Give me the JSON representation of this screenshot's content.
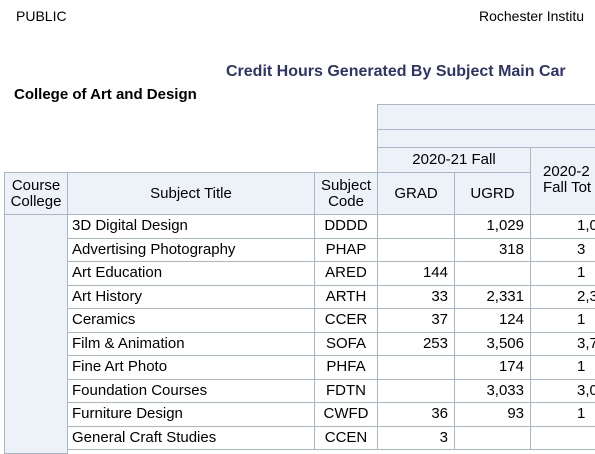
{
  "header": {
    "left": "PUBLIC",
    "right": "Rochester Institu"
  },
  "report_title": "Credit Hours Generated By Subject Main Car",
  "college_name": "College of Art and Design",
  "table": {
    "term_header": "2020-21 Fall",
    "total_header_line1": "2020-2",
    "total_header_line2": "Fall Tot",
    "col_course_college_1": "Course",
    "col_course_college_2": "College",
    "col_subject_title": "Subject Title",
    "col_subject_code_1": "Subject",
    "col_subject_code_2": "Code",
    "col_grad": "GRAD",
    "col_ugrd": "UGRD",
    "rows": [
      {
        "title": "3D Digital Design",
        "code": "DDDD",
        "grad": "",
        "ugrd": "1,029",
        "total": "1,0"
      },
      {
        "title": "Advertising Photography",
        "code": "PHAP",
        "grad": "",
        "ugrd": "318",
        "total": "3"
      },
      {
        "title": "Art Education",
        "code": "ARED",
        "grad": "144",
        "ugrd": "",
        "total": "1"
      },
      {
        "title": "Art History",
        "code": "ARTH",
        "grad": "33",
        "ugrd": "2,331",
        "total": "2,3"
      },
      {
        "title": "Ceramics",
        "code": "CCER",
        "grad": "37",
        "ugrd": "124",
        "total": "1"
      },
      {
        "title": "Film & Animation",
        "code": "SOFA",
        "grad": "253",
        "ugrd": "3,506",
        "total": "3,7"
      },
      {
        "title": "Fine Art Photo",
        "code": "PHFA",
        "grad": "",
        "ugrd": "174",
        "total": "1"
      },
      {
        "title": "Foundation Courses",
        "code": "FDTN",
        "grad": "",
        "ugrd": "3,033",
        "total": "3,0"
      },
      {
        "title": "Furniture Design",
        "code": "CWFD",
        "grad": "36",
        "ugrd": "93",
        "total": "1"
      },
      {
        "title": "General Craft Studies",
        "code": "CCEN",
        "grad": "3",
        "ugrd": "",
        "total": ""
      }
    ]
  }
}
